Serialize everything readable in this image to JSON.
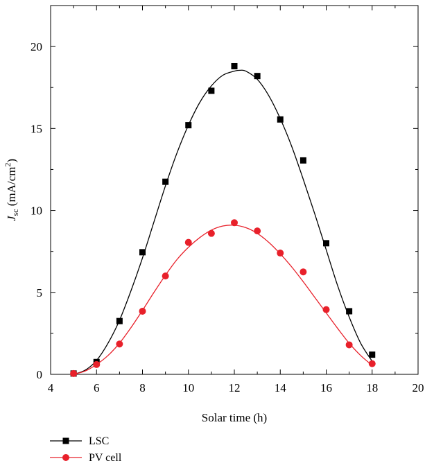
{
  "chart_data": {
    "type": "line",
    "xlabel": "Solar time (h)",
    "ylabel": {
      "symbol": "J",
      "subscript": "sc",
      "unit_prefix": " (mA/cm",
      "unit_power": "2",
      "unit_suffix": ")"
    },
    "xlim": [
      4,
      20
    ],
    "ylim": [
      0,
      22.5
    ],
    "x_ticks": [
      4,
      6,
      8,
      10,
      12,
      14,
      16,
      18,
      20
    ],
    "y_ticks": [
      0,
      5,
      10,
      15,
      20
    ],
    "grid": false,
    "legend_placement": "bottom-left, below plot",
    "series": [
      {
        "name": "LSC",
        "color": "#000000",
        "marker": "square",
        "x": [
          5,
          6,
          7,
          8,
          9,
          10,
          11,
          12,
          13,
          14,
          15,
          16,
          17,
          18
        ],
        "y": [
          0.05,
          0.75,
          3.25,
          7.45,
          11.75,
          15.2,
          17.3,
          18.8,
          18.2,
          15.55,
          13.05,
          8.0,
          3.85,
          1.2
        ],
        "fit": {
          "x": [
            5,
            5.5,
            6,
            6.5,
            7,
            7.5,
            8,
            8.5,
            9,
            9.5,
            10,
            10.5,
            11,
            11.5,
            12,
            12.25,
            12.5,
            13,
            13.5,
            14,
            14.5,
            15,
            15.5,
            16,
            16.5,
            17,
            17.5,
            18
          ],
          "y": [
            0.0,
            0.25,
            0.85,
            1.9,
            3.3,
            5.1,
            7.1,
            9.3,
            11.5,
            13.5,
            15.2,
            16.6,
            17.6,
            18.25,
            18.5,
            18.55,
            18.5,
            18.0,
            17.0,
            15.6,
            13.9,
            11.9,
            9.8,
            7.6,
            5.4,
            3.5,
            1.9,
            0.8
          ]
        }
      },
      {
        "name": "PV cell",
        "color": "#e8202a",
        "marker": "circle",
        "x": [
          5,
          6,
          7,
          8,
          9,
          10,
          11,
          12,
          13,
          14,
          15,
          16,
          17,
          18
        ],
        "y": [
          0.05,
          0.6,
          1.85,
          3.85,
          6.0,
          8.05,
          8.6,
          9.25,
          8.75,
          7.4,
          6.25,
          3.95,
          1.8,
          0.65
        ],
        "fit": {
          "x": [
            5,
            5.5,
            6,
            6.5,
            7,
            7.5,
            8,
            8.5,
            9,
            9.5,
            10,
            10.5,
            11,
            11.5,
            12,
            12.5,
            13,
            13.5,
            14,
            14.5,
            15,
            15.5,
            16,
            16.5,
            17,
            17.5,
            18
          ],
          "y": [
            0.0,
            0.2,
            0.6,
            1.15,
            1.9,
            2.85,
            3.9,
            5.0,
            6.05,
            7.0,
            7.75,
            8.35,
            8.8,
            9.05,
            9.1,
            8.95,
            8.6,
            8.05,
            7.35,
            6.55,
            5.65,
            4.7,
            3.75,
            2.8,
            1.9,
            1.15,
            0.55
          ]
        }
      }
    ]
  }
}
